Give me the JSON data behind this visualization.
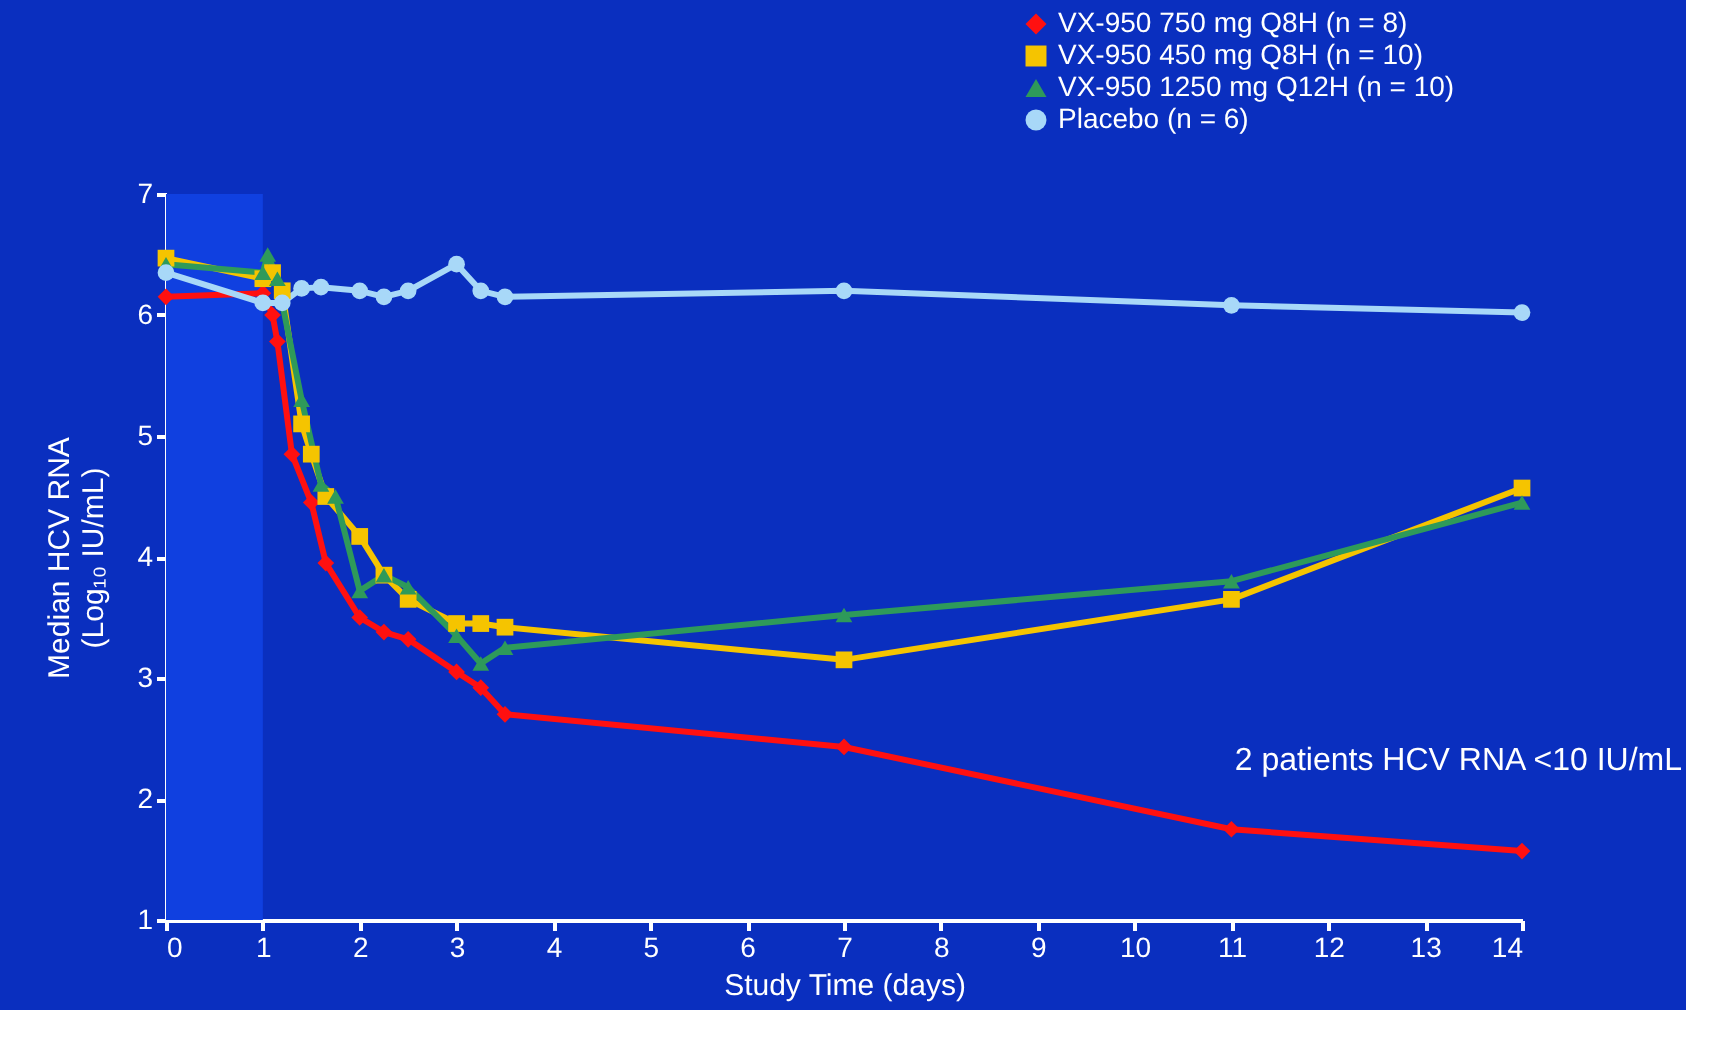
{
  "chart_data": {
    "type": "line",
    "xlabel": "Study Time (days)",
    "ylabel": "Median HCV RNA\n(Log₁₀ IU/mL)",
    "xlim": [
      0,
      14
    ],
    "xticks": [
      0,
      1,
      2,
      3,
      4,
      5,
      6,
      7,
      8,
      9,
      10,
      11,
      12,
      13,
      14
    ],
    "ylim": [
      1,
      7
    ],
    "yticks": [
      1,
      2,
      3,
      4,
      5,
      6,
      7
    ],
    "grid": false,
    "legend": "top right",
    "line_style": "solid",
    "annotations": [
      "2 patients HCV RNA <10 IU/mL"
    ],
    "bands": [
      {
        "axis": "x",
        "from": 0,
        "to": 1,
        "color": "#1040e0"
      }
    ],
    "series": [
      {
        "name": "VX-950 750 mg Q8H (n = 8)",
        "color": "#ff1010",
        "marker": "diamond",
        "x": [
          0,
          1,
          1.1,
          1.15,
          1.3,
          1.5,
          1.65,
          2,
          2.25,
          2.5,
          3,
          3.25,
          3.5,
          7,
          11,
          14
        ],
        "values": [
          6.15,
          6.18,
          6.0,
          5.78,
          4.85,
          4.45,
          3.95,
          3.5,
          3.38,
          3.32,
          3.05,
          2.92,
          2.7,
          2.43,
          1.75,
          1.57
        ]
      },
      {
        "name": "VX-950 450 mg Q8H (n = 10)",
        "color": "#f5c400",
        "marker": "square",
        "x": [
          0,
          1,
          1.1,
          1.2,
          1.4,
          1.5,
          1.65,
          2,
          2.25,
          2.5,
          3,
          3.25,
          3.5,
          7,
          11,
          14
        ],
        "values": [
          6.47,
          6.3,
          6.35,
          6.2,
          5.1,
          4.85,
          4.5,
          4.17,
          3.85,
          3.65,
          3.45,
          3.45,
          3.42,
          3.15,
          3.65,
          4.57
        ]
      },
      {
        "name": "VX-950 1250 mg Q12H (n = 10)",
        "color": "#2e9a5a",
        "marker": "triangle",
        "x": [
          0,
          1,
          1.05,
          1.15,
          1.4,
          1.6,
          1.75,
          2,
          2.25,
          2.5,
          3,
          3.25,
          3.5,
          7,
          11,
          14
        ],
        "values": [
          6.42,
          6.35,
          6.5,
          6.3,
          5.3,
          4.6,
          4.5,
          3.72,
          3.85,
          3.75,
          3.35,
          3.12,
          3.25,
          3.52,
          3.8,
          4.45
        ]
      },
      {
        "name": "Placebo (n = 6)",
        "color": "#a8d8f8",
        "marker": "circle",
        "x": [
          0,
          1,
          1.2,
          1.4,
          1.6,
          2,
          2.25,
          2.5,
          3,
          3.25,
          3.5,
          7,
          11,
          14
        ],
        "values": [
          6.35,
          6.1,
          6.1,
          6.22,
          6.23,
          6.2,
          6.15,
          6.2,
          6.42,
          6.2,
          6.15,
          6.2,
          6.08,
          6.02
        ]
      }
    ]
  }
}
